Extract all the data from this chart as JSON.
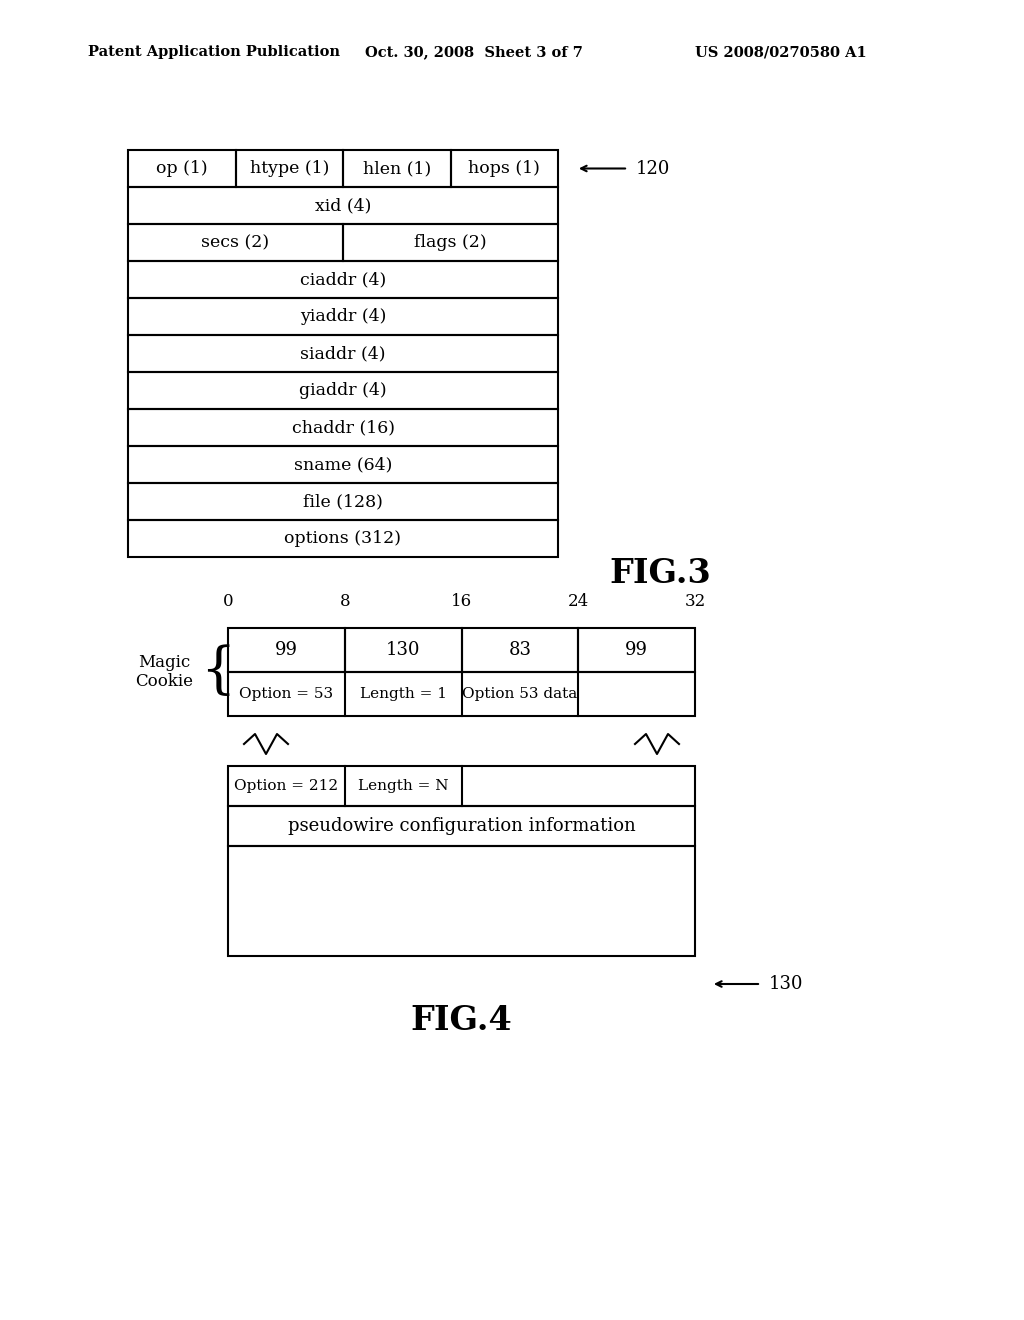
{
  "bg_color": "#ffffff",
  "header_text": "Patent Application Publication",
  "header_date": "Oct. 30, 2008  Sheet 3 of 7",
  "header_patent": "US 2008/0270580 A1",
  "fig3_label": "120",
  "fig3_caption": "FIG.3",
  "fig3_rows": [
    {
      "type": "four_col",
      "cols": [
        "op (1)",
        "htype (1)",
        "hlen (1)",
        "hops (1)"
      ]
    },
    {
      "type": "full",
      "text": "xid (4)"
    },
    {
      "type": "two_col",
      "col1": "secs (2)",
      "col2": "flags (2)"
    },
    {
      "type": "full",
      "text": "ciaddr (4)"
    },
    {
      "type": "full",
      "text": "yiaddr (4)"
    },
    {
      "type": "full",
      "text": "siaddr (4)"
    },
    {
      "type": "full",
      "text": "giaddr (4)"
    },
    {
      "type": "full",
      "text": "chaddr (16)"
    },
    {
      "type": "full",
      "text": "sname (64)"
    },
    {
      "type": "full",
      "text": "file (128)"
    },
    {
      "type": "full",
      "text": "options (312)"
    }
  ],
  "fig4_label": "130",
  "fig4_caption": "FIG.4",
  "fig4_tick_labels": [
    "0",
    "8",
    "16",
    "24",
    "32"
  ],
  "fig4_magic_cookie_label": "Magic\nCookie",
  "fig4_row1": [
    "99",
    "130",
    "83",
    "99"
  ],
  "fig4_row2_cells": [
    "Option = 53",
    "Length = 1",
    "Option 53 data"
  ],
  "fig4_option212": "Option = 212",
  "fig4_lengthN": "Length = N",
  "fig4_pw_text": "pseudowire configuration information"
}
